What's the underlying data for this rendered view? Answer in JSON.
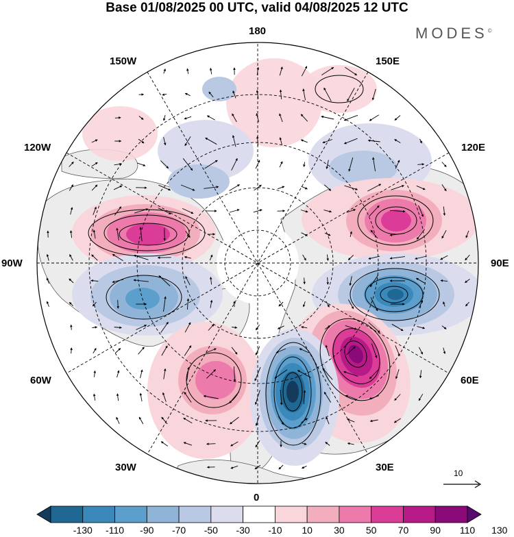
{
  "title": "Base 01/08/2025 00 UTC, valid 04/08/2025 12 UTC",
  "brand": "MODES",
  "brand_mark": "©",
  "longitude_labels": {
    "top": "180",
    "bottom": "0",
    "left": "90W",
    "right": "90E",
    "upper_left_outer": "150W",
    "upper_left_inner": "120W",
    "lower_left_outer": "60W",
    "lower_left_inner": "30W",
    "upper_right_outer": "150E",
    "upper_right_inner": "120E",
    "lower_right_outer": "60E",
    "lower_right_inner": "30E"
  },
  "vector_reference": {
    "label": "10",
    "icon": "reference-arrow-icon"
  },
  "colorbar": {
    "ticks": [
      "-130",
      "-110",
      "-90",
      "-70",
      "-50",
      "-30",
      "-10",
      "10",
      "30",
      "50",
      "70",
      "90",
      "110",
      "130"
    ],
    "colors": [
      "#143a5c",
      "#1f6894",
      "#3b88ba",
      "#5d9fcc",
      "#8fb4d8",
      "#b9c9e4",
      "#dcdcef",
      "#ffffff",
      "#f9d6dc",
      "#f3aebe",
      "#ec7bab",
      "#da3c98",
      "#b71a87",
      "#8a0a7a",
      "#5a0a6e"
    ]
  },
  "anomaly_centers": [
    {
      "id": "pink-north-america",
      "lon": -105,
      "lat": 55,
      "value": 90
    },
    {
      "id": "blue-hudson",
      "lon": -75,
      "lat": 55,
      "value": -70
    },
    {
      "id": "pink-greenland-sea",
      "lon": -35,
      "lat": 55,
      "value": 50
    },
    {
      "id": "blue-scandinavia",
      "lon": 18,
      "lat": 62,
      "value": -130
    },
    {
      "id": "purple-ural",
      "lon": 50,
      "lat": 60,
      "value": 110
    },
    {
      "id": "blue-siberia",
      "lon": 80,
      "lat": 55,
      "value": -110
    },
    {
      "id": "pink-east-siberia",
      "lon": 110,
      "lat": 55,
      "value": 90
    },
    {
      "id": "blue-far-east",
      "lon": 135,
      "lat": 55,
      "value": -50
    },
    {
      "id": "pink-bering",
      "lon": 170,
      "lat": 52,
      "value": 30
    },
    {
      "id": "pink-pacific",
      "lon": 155,
      "lat": 35,
      "value": 30
    }
  ]
}
